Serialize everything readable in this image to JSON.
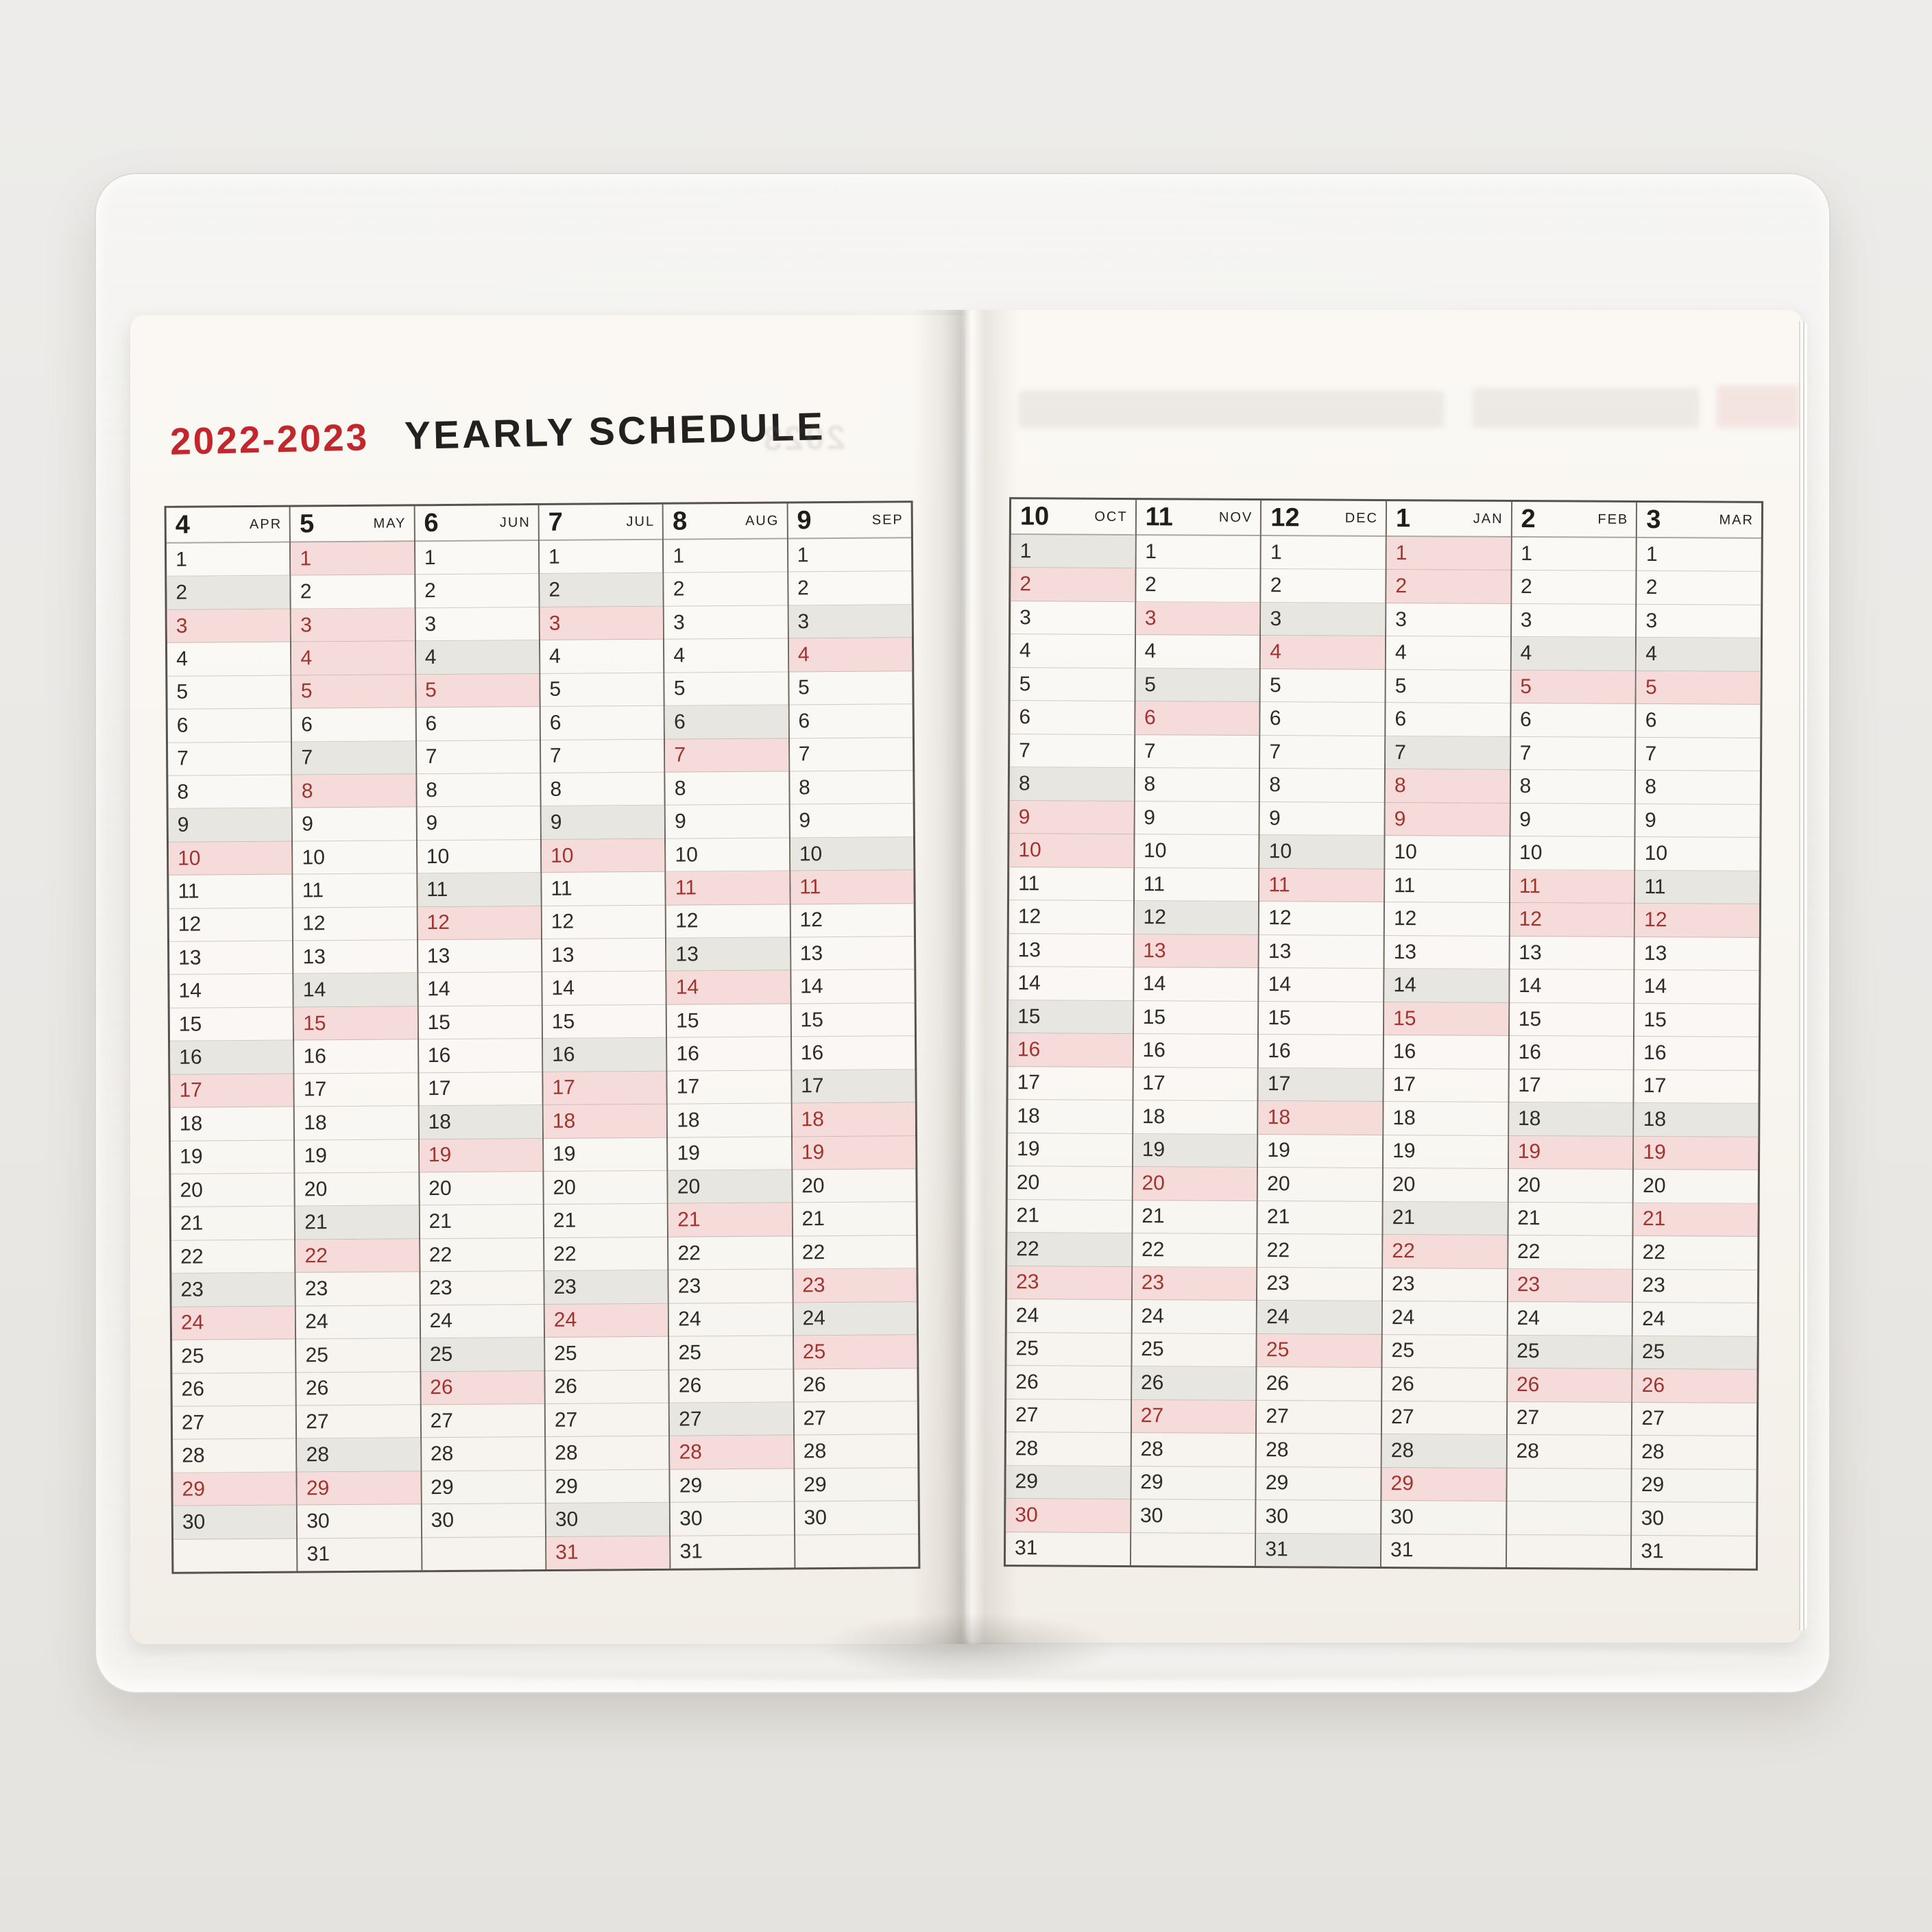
{
  "title": {
    "year_range": "2022-2023",
    "heading": "YEARLY SCHEDULE"
  },
  "ghost": {
    "text": "2023"
  },
  "colors": {
    "holiday_bg": "#f5dcda",
    "holiday_text": "#a23430",
    "saturday_bg": "#e8e6e1",
    "weekday_text": "#2e2c29",
    "title_red": "#c1272d",
    "title_black": "#23211f",
    "grid_line": "rgba(140,130,115,0.38)",
    "column_line": "#6e675e",
    "table_border": "#57524b"
  },
  "grid": {
    "rows": 31
  },
  "pages": [
    {
      "side": "left",
      "months": [
        {
          "num": "4",
          "abbr": "APR",
          "days": 30,
          "holidays": [
            3,
            10,
            17,
            24,
            29
          ],
          "saturdays": [
            2,
            9,
            16,
            23,
            30
          ]
        },
        {
          "num": "5",
          "abbr": "MAY",
          "days": 31,
          "holidays": [
            1,
            3,
            4,
            5,
            8,
            15,
            22,
            29
          ],
          "saturdays": [
            7,
            14,
            21,
            28
          ]
        },
        {
          "num": "6",
          "abbr": "JUN",
          "days": 30,
          "holidays": [
            5,
            12,
            19,
            26
          ],
          "saturdays": [
            4,
            11,
            18,
            25
          ]
        },
        {
          "num": "7",
          "abbr": "JUL",
          "days": 31,
          "holidays": [
            3,
            10,
            17,
            18,
            24,
            31
          ],
          "saturdays": [
            2,
            9,
            16,
            23,
            30
          ]
        },
        {
          "num": "8",
          "abbr": "AUG",
          "days": 31,
          "holidays": [
            7,
            11,
            14,
            21,
            28
          ],
          "saturdays": [
            6,
            13,
            20,
            27
          ]
        },
        {
          "num": "9",
          "abbr": "SEP",
          "days": 30,
          "holidays": [
            4,
            11,
            18,
            19,
            23,
            25
          ],
          "saturdays": [
            3,
            10,
            17,
            24
          ]
        }
      ]
    },
    {
      "side": "right",
      "months": [
        {
          "num": "10",
          "abbr": "OCT",
          "days": 31,
          "holidays": [
            2,
            9,
            10,
            16,
            23,
            30
          ],
          "saturdays": [
            1,
            8,
            15,
            22,
            29
          ]
        },
        {
          "num": "11",
          "abbr": "NOV",
          "days": 30,
          "holidays": [
            3,
            6,
            13,
            20,
            23,
            27
          ],
          "saturdays": [
            5,
            12,
            19,
            26
          ]
        },
        {
          "num": "12",
          "abbr": "DEC",
          "days": 31,
          "holidays": [
            4,
            11,
            18,
            25
          ],
          "saturdays": [
            3,
            10,
            17,
            24,
            31
          ]
        },
        {
          "num": "1",
          "abbr": "JAN",
          "days": 31,
          "holidays": [
            1,
            2,
            8,
            9,
            15,
            22,
            29
          ],
          "saturdays": [
            7,
            14,
            21,
            28
          ]
        },
        {
          "num": "2",
          "abbr": "FEB",
          "days": 28,
          "holidays": [
            5,
            11,
            12,
            19,
            23,
            26
          ],
          "saturdays": [
            4,
            18,
            25
          ]
        },
        {
          "num": "3",
          "abbr": "MAR",
          "days": 31,
          "holidays": [
            5,
            12,
            19,
            21,
            26
          ],
          "saturdays": [
            4,
            11,
            18,
            25
          ]
        }
      ]
    }
  ]
}
